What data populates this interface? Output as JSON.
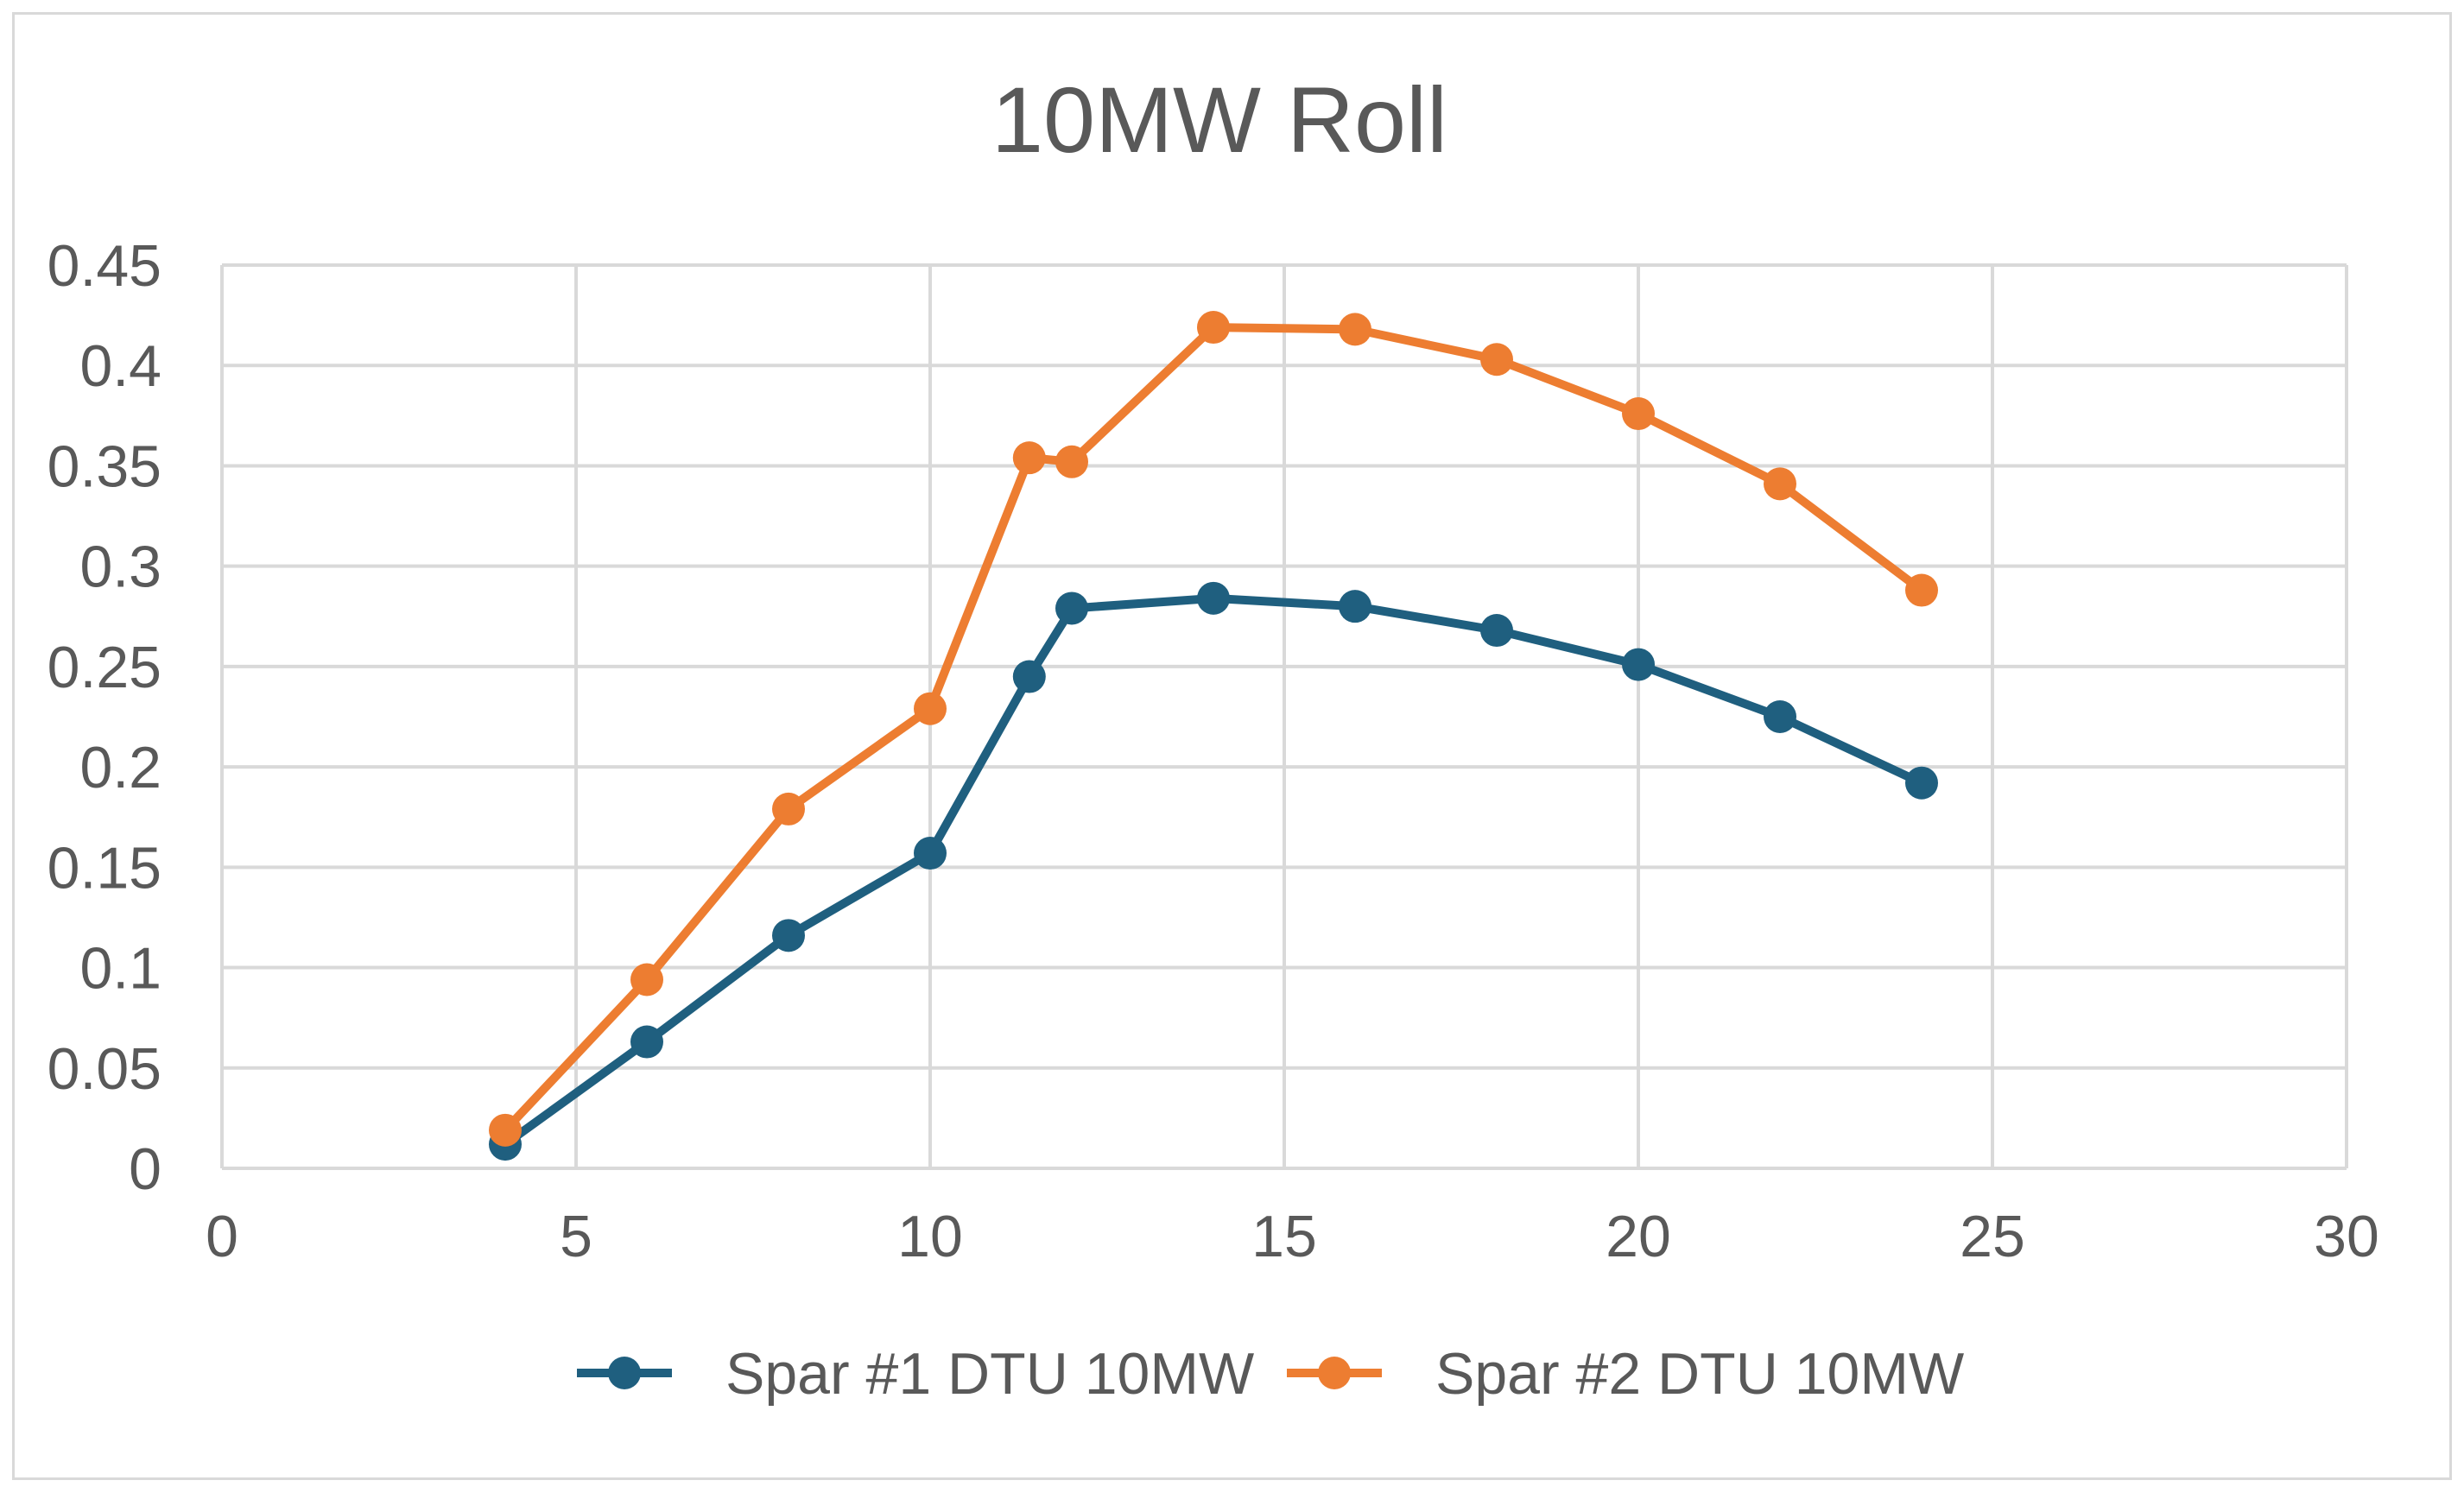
{
  "chart_data": {
    "type": "line",
    "title": "10MW Roll",
    "xlabel": "",
    "ylabel": "",
    "xlim": [
      0,
      30
    ],
    "ylim": [
      0,
      0.45
    ],
    "xticks": [
      "0",
      "5",
      "10",
      "15",
      "20",
      "25",
      "30"
    ],
    "yticks": [
      "0",
      "0.05",
      "0.1",
      "0.15",
      "0.2",
      "0.25",
      "0.3",
      "0.35",
      "0.4",
      "0.45"
    ],
    "grid": true,
    "legend_position": "bottom",
    "series": [
      {
        "name": "Spar #1 DTU 10MW",
        "color": "#1f5f7f",
        "x": [
          4,
          6,
          8,
          10,
          11.4,
          12,
          14,
          16,
          18,
          20,
          22,
          24
        ],
        "y": [
          0.012,
          0.063,
          0.116,
          0.157,
          0.245,
          0.279,
          0.284,
          0.28,
          0.268,
          0.251,
          0.225,
          0.192
        ]
      },
      {
        "name": "Spar #2 DTU 10MW",
        "color": "#ed7d31",
        "x": [
          4,
          6,
          8,
          10,
          11.4,
          12,
          14,
          16,
          18,
          20,
          22,
          24
        ],
        "y": [
          0.019,
          0.094,
          0.179,
          0.229,
          0.354,
          0.352,
          0.419,
          0.418,
          0.403,
          0.376,
          0.341,
          0.288
        ]
      }
    ]
  }
}
